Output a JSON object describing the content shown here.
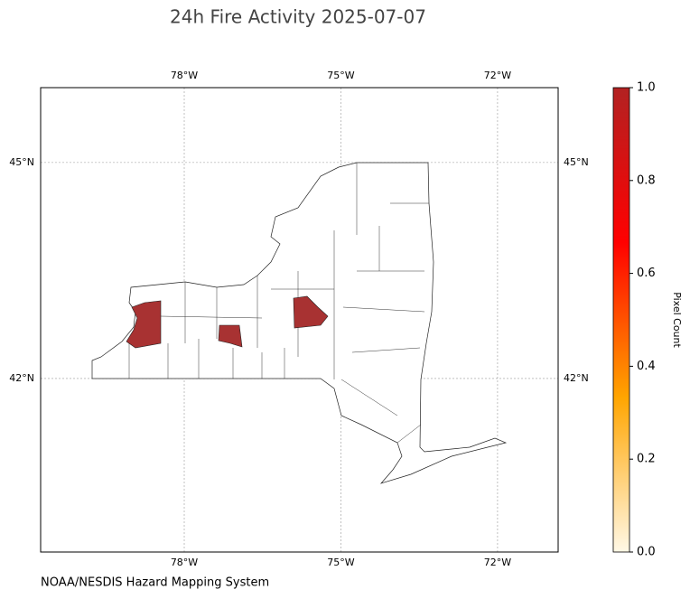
{
  "chart_data": {
    "type": "map",
    "title": "24h Fire Activity 2025-07-07",
    "source": "NOAA/NESDIS Hazard Mapping System",
    "xlim": [
      -80.75,
      -70.84
    ],
    "ylim": [
      39.59,
      46.04
    ],
    "xticks": [
      {
        "value": -78,
        "label": "78°W"
      },
      {
        "value": -75,
        "label": "75°W"
      },
      {
        "value": -72,
        "label": "72°W"
      }
    ],
    "yticks": [
      {
        "value": 42,
        "label": "42°N"
      },
      {
        "value": 45,
        "label": "45°N"
      }
    ],
    "grid": true,
    "colorbar": {
      "label": "Pixel Count",
      "clim": [
        0,
        1
      ],
      "ticks": [
        {
          "value": 0,
          "label": "0.0"
        },
        {
          "value": 0.2,
          "label": "0.2"
        },
        {
          "value": 0.4,
          "label": "0.4"
        },
        {
          "value": 0.6,
          "label": "0.6"
        },
        {
          "value": 0.8,
          "label": "0.8"
        },
        {
          "value": 1,
          "label": "1.0"
        }
      ],
      "colormap": [
        "#fff8e6",
        "#ffa500",
        "#ff0000",
        "#b22222"
      ]
    },
    "fire_pixels": {
      "values": [
        1,
        1,
        1
      ],
      "color": "#a83232"
    }
  }
}
